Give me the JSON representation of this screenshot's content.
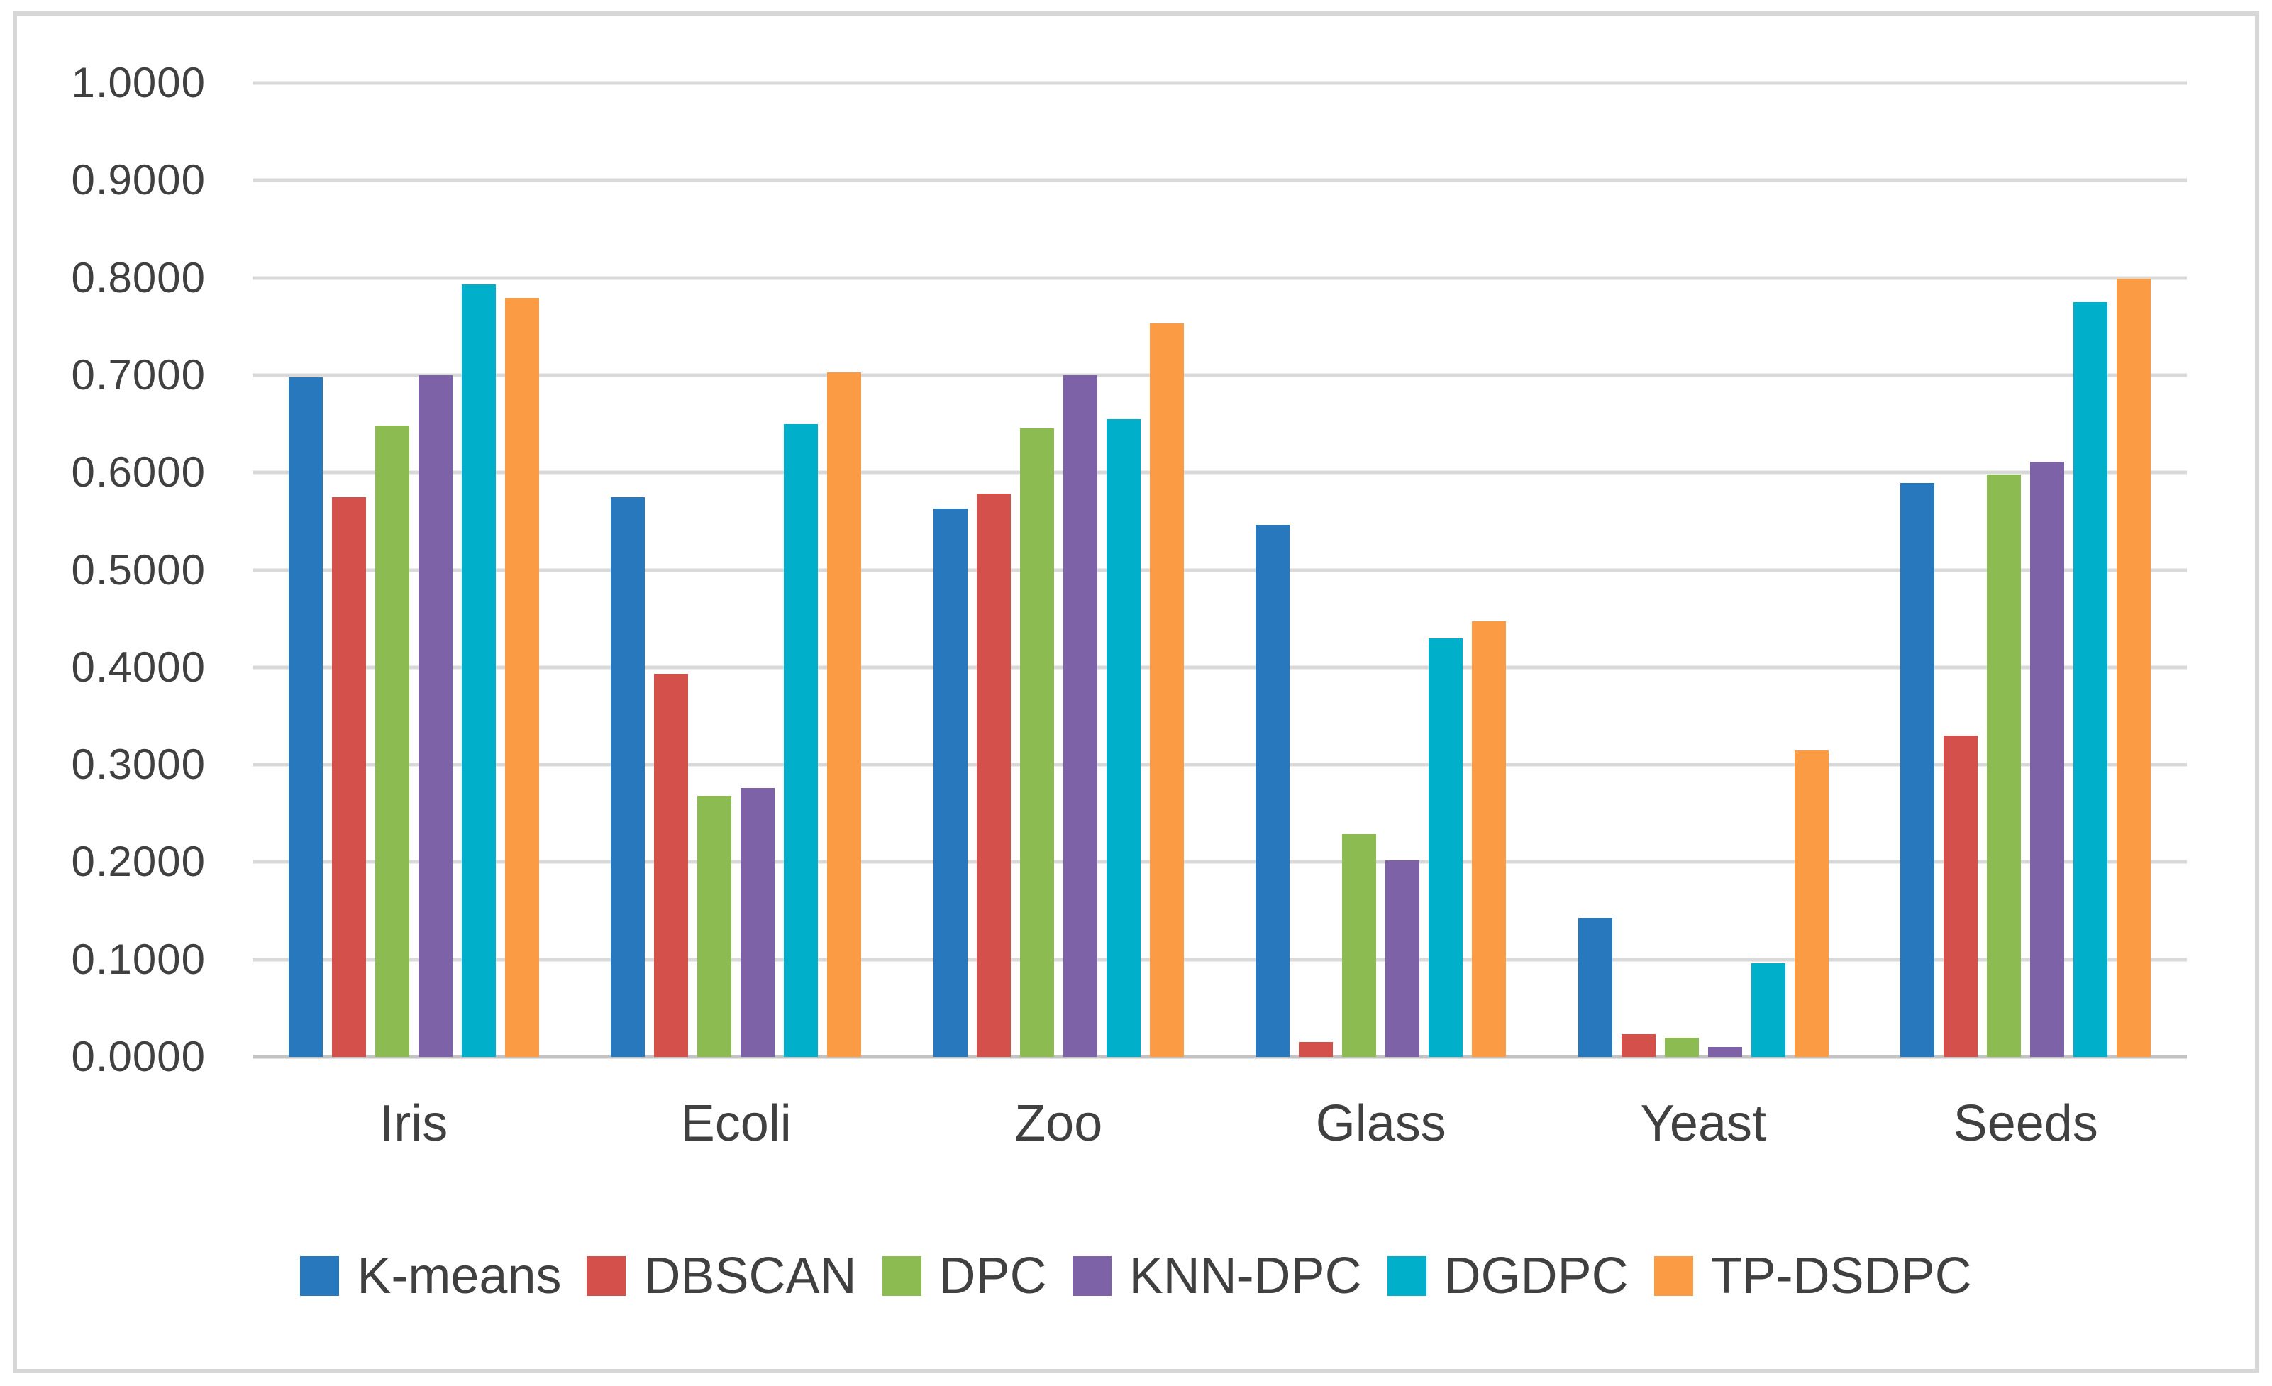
{
  "figure": {
    "background_color": "#ffffff",
    "frame_border_color": "#d7d7d7",
    "gridline_color": "#d9d9d9",
    "axis_line_color": "#c3c3c3",
    "text_color": "#404040"
  },
  "chart_data": {
    "type": "bar",
    "title": "",
    "xlabel": "",
    "ylabel": "",
    "categories": [
      "Iris",
      "Ecoli",
      "Zoo",
      "Glass",
      "Yeast",
      "Seeds"
    ],
    "series": [
      {
        "name": "K-means",
        "color": "#2878be",
        "values": [
          0.698,
          0.575,
          0.563,
          0.546,
          0.143,
          0.589
        ]
      },
      {
        "name": "DBSCAN",
        "color": "#d3504b",
        "values": [
          0.575,
          0.393,
          0.578,
          0.015,
          0.023,
          0.33
        ]
      },
      {
        "name": "DPC",
        "color": "#8cbb52",
        "values": [
          0.648,
          0.268,
          0.645,
          0.229,
          0.02,
          0.598
        ]
      },
      {
        "name": "KNN-DPC",
        "color": "#7e62a8",
        "values": [
          0.7,
          0.276,
          0.7,
          0.202,
          0.01,
          0.611
        ]
      },
      {
        "name": "DGDPC",
        "color": "#00afc9",
        "values": [
          0.793,
          0.65,
          0.655,
          0.43,
          0.096,
          0.775
        ]
      },
      {
        "name": "TP-DSDPC",
        "color": "#fb9b43",
        "values": [
          0.779,
          0.703,
          0.753,
          0.447,
          0.315,
          0.799
        ]
      }
    ],
    "y_axis": {
      "min": 0.0,
      "max": 1.0,
      "step": 0.1,
      "tick_labels": [
        "0.0000",
        "0.1000",
        "0.2000",
        "0.3000",
        "0.4000",
        "0.5000",
        "0.6000",
        "0.7000",
        "0.8000",
        "0.9000",
        "1.0000"
      ]
    },
    "grid": true,
    "legend_position": "bottom"
  }
}
